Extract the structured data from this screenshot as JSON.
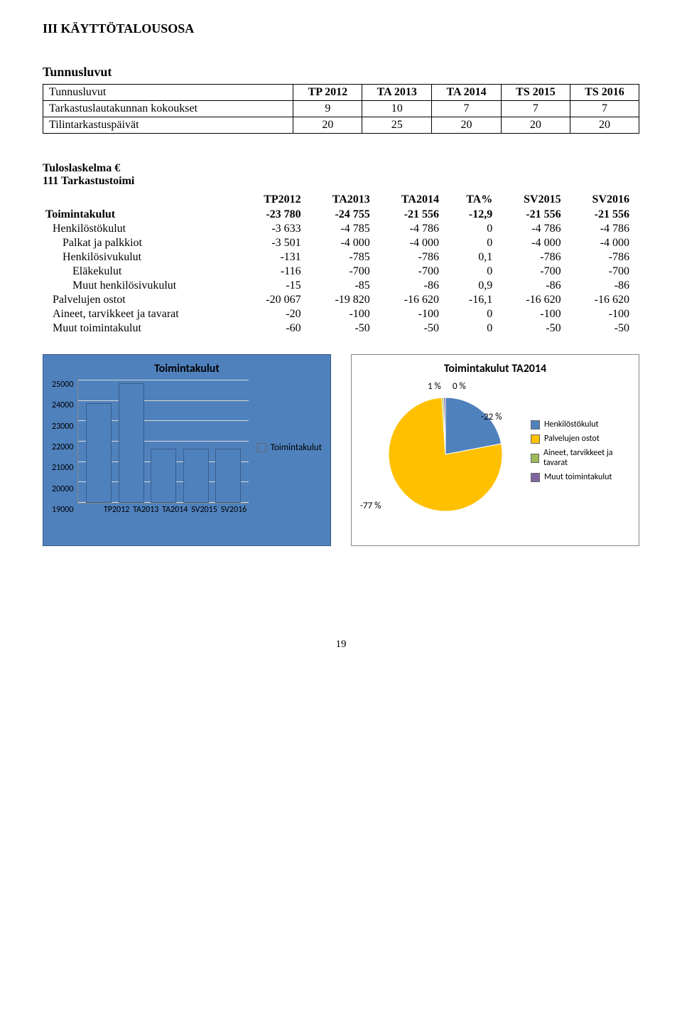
{
  "heading": "III KÄYTTÖTALOUSOSA",
  "tunnus": {
    "title": "Tunnusluvut",
    "columns": [
      "Tunnusluvut",
      "TP 2012",
      "TA 2013",
      "TA 2014",
      "TS 2015",
      "TS 2016"
    ],
    "rows": [
      {
        "label": "Tarkastuslautakunnan kokoukset",
        "vals": [
          "9",
          "10",
          "7",
          "7",
          "7"
        ]
      },
      {
        "label": "Tilintarkastuspäivät",
        "vals": [
          "20",
          "25",
          "20",
          "20",
          "20"
        ]
      }
    ]
  },
  "tulos": {
    "title": "Tuloslaskelma €",
    "subhead": "111 Tarkastustoimi",
    "columns": [
      "",
      "TP2012",
      "TA2013",
      "TA2014",
      "TA%",
      "SV2015",
      "SV2016"
    ],
    "rows": [
      {
        "cls": "bold",
        "cells": [
          "Toimintakulut",
          "-23 780",
          "-24 755",
          "-21 556",
          "-12,9",
          "-21 556",
          "-21 556"
        ]
      },
      {
        "cls": "indent1",
        "cells": [
          "Henkilöstökulut",
          "-3 633",
          "-4 785",
          "-4 786",
          "0",
          "-4 786",
          "-4 786"
        ]
      },
      {
        "cls": "indent2",
        "cells": [
          "Palkat ja palkkiot",
          "-3 501",
          "-4 000",
          "-4 000",
          "0",
          "-4 000",
          "-4 000"
        ]
      },
      {
        "cls": "indent2",
        "cells": [
          "Henkilösivukulut",
          "-131",
          "-785",
          "-786",
          "0,1",
          "-786",
          "-786"
        ]
      },
      {
        "cls": "indent3",
        "cells": [
          "Eläkekulut",
          "-116",
          "-700",
          "-700",
          "0",
          "-700",
          "-700"
        ]
      },
      {
        "cls": "indent3",
        "cells": [
          "Muut henkilösivukulut",
          "-15",
          "-85",
          "-86",
          "0,9",
          "-86",
          "-86"
        ]
      },
      {
        "cls": "indent1",
        "cells": [
          "Palvelujen ostot",
          "-20 067",
          "-19 820",
          "-16 620",
          "-16,1",
          "-16 620",
          "-16 620"
        ]
      },
      {
        "cls": "indent1",
        "cells": [
          "Aineet, tarvikkeet ja tavarat",
          "-20",
          "-100",
          "-100",
          "0",
          "-100",
          "-100"
        ]
      },
      {
        "cls": "indent1",
        "cells": [
          "Muut toimintakulut",
          "-60",
          "-50",
          "-50",
          "0",
          "-50",
          "-50"
        ]
      }
    ]
  },
  "bar_chart": {
    "title": "Toimintakulut",
    "legend_label": "Toimintakulut",
    "color": "#4f81bd",
    "categories": [
      "TP2012",
      "TA2013",
      "TA2014",
      "SV2015",
      "SV2016"
    ],
    "values": [
      23780,
      24755,
      21556,
      21556,
      21556
    ],
    "ymin": 19000,
    "ymax": 25000,
    "ystep": 1000,
    "grid_color": "#d9d9d9"
  },
  "pie_chart": {
    "title": "Toimintakulut TA2014",
    "slices": [
      {
        "label": "Henkilöstökulut",
        "pct_text": "-22 %",
        "fraction": 0.22,
        "color": "#4f81bd"
      },
      {
        "label": "Palvelujen ostot",
        "pct_text": "-77 %",
        "fraction": 0.77,
        "color": "#ffc000"
      },
      {
        "label": "Aineet, tarvikkeet ja tavarat",
        "pct_text": "1 %",
        "fraction": 0.005,
        "color": "#9bbb59"
      },
      {
        "label": "Muut toimintakulut",
        "pct_text": "0 %",
        "fraction": 0.005,
        "color": "#8064a2"
      }
    ]
  },
  "page_number": "19"
}
